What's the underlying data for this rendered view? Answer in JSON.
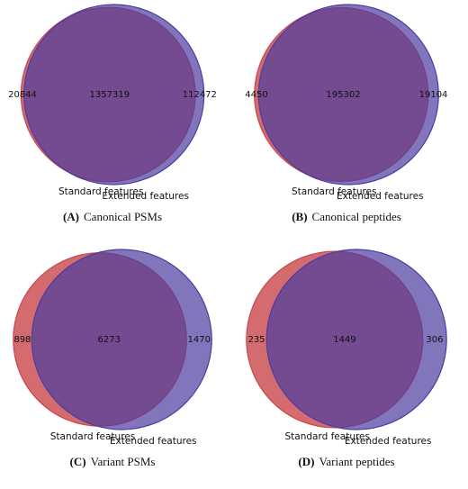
{
  "chart_data": [
    {
      "type": "venn",
      "label": "(A)",
      "title": "Canonical PSMs",
      "sets": [
        {
          "name": "Standard features",
          "color": "#c8464b"
        },
        {
          "name": "Extended features",
          "color": "#4b3ca0"
        }
      ],
      "values": [
        20844,
        1357319,
        112472
      ]
    },
    {
      "type": "venn",
      "label": "(B)",
      "title": "Canonical peptides",
      "sets": [
        {
          "name": "Standard features",
          "color": "#c8464b"
        },
        {
          "name": "Extended features",
          "color": "#4b3ca0"
        }
      ],
      "values": [
        4450,
        195302,
        19104
      ]
    },
    {
      "type": "venn",
      "label": "(C)",
      "title": "Variant PSMs",
      "sets": [
        {
          "name": "Standard features",
          "color": "#c8464b"
        },
        {
          "name": "Extended features",
          "color": "#4b3ca0"
        }
      ],
      "values": [
        898,
        6273,
        1470
      ]
    },
    {
      "type": "venn",
      "label": "(D)",
      "title": "Variant peptides",
      "sets": [
        {
          "name": "Standard features",
          "color": "#c8464b"
        },
        {
          "name": "Extended features",
          "color": "#4b3ca0"
        }
      ],
      "values": [
        235,
        1449,
        306
      ]
    }
  ]
}
